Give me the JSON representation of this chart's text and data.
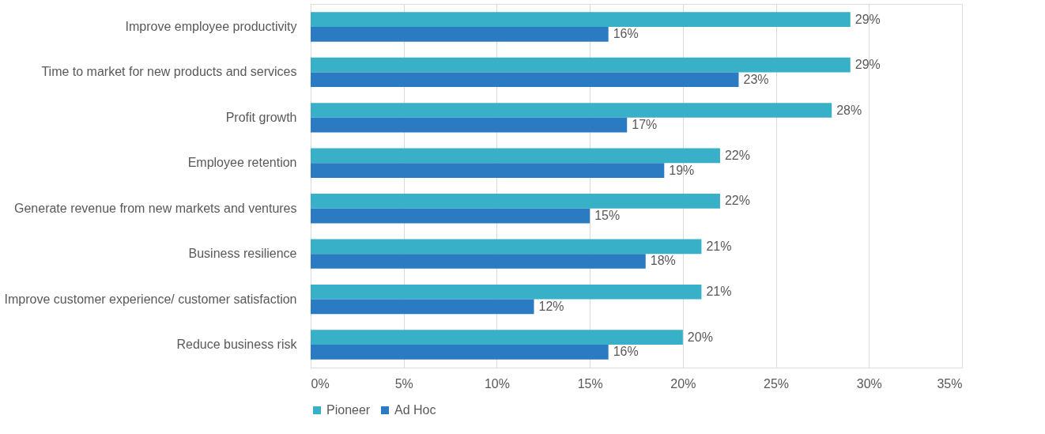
{
  "chart_data": {
    "type": "bar",
    "orientation": "horizontal",
    "categories": [
      "Improve employee productivity",
      "Time to market for new products and services",
      "Profit growth",
      "Employee retention",
      "Generate revenue from new markets and ventures",
      "Business resilience",
      "Improve customer experience/ customer satisfaction",
      "Reduce business risk"
    ],
    "series": [
      {
        "name": "Pioneer",
        "color": "#38b0c8",
        "values": [
          29,
          29,
          28,
          22,
          22,
          21,
          21,
          20
        ],
        "value_labels": [
          "29%",
          "29%",
          "28%",
          "22%",
          "22%",
          "21%",
          "21%",
          "20%"
        ]
      },
      {
        "name": "Ad Hoc",
        "color": "#2a7bc1",
        "values": [
          16,
          23,
          17,
          19,
          15,
          18,
          12,
          16
        ],
        "value_labels": [
          "16%",
          "23%",
          "17%",
          "19%",
          "15%",
          "18%",
          "12%",
          "16%"
        ]
      }
    ],
    "xlim": [
      0,
      35
    ],
    "xticks": [
      {
        "value": 0,
        "label": "0%"
      },
      {
        "value": 5,
        "label": "5%"
      },
      {
        "value": 10,
        "label": "10%"
      },
      {
        "value": 15,
        "label": "15%"
      },
      {
        "value": 20,
        "label": "20%"
      },
      {
        "value": 25,
        "label": "25%"
      },
      {
        "value": 30,
        "label": "30%"
      },
      {
        "value": 35,
        "label": "35%"
      }
    ],
    "grid": "x",
    "legend": "bottom"
  }
}
